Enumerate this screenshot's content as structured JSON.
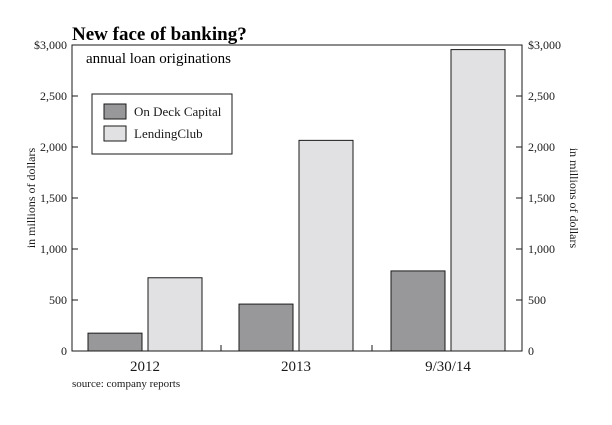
{
  "chart_data": {
    "type": "bar",
    "title": "New face of banking?",
    "subtitle": "annual loan originations",
    "categories": [
      "2012",
      "2013",
      "9/30/14"
    ],
    "series": [
      {
        "name": "On Deck Capital",
        "values": [
          175,
          460,
          785
        ],
        "color": "#98989b"
      },
      {
        "name": "LendingClub",
        "values": [
          718,
          2065,
          2955
        ],
        "color": "#e1e1e3"
      }
    ],
    "ylabel": "in millions of dollars",
    "ylabel_right": "in millions of dollars",
    "ylim": [
      0,
      3000
    ],
    "left_ticks": [
      "0",
      "500",
      "1,000",
      "1,500",
      "2,000",
      "2,500",
      "$3,000"
    ],
    "right_ticks": [
      "0",
      "500",
      "1,000",
      "1,500",
      "2,000",
      "2,500",
      "$3,000"
    ],
    "tick_values": [
      0,
      500,
      1000,
      1500,
      2000,
      2500,
      3000
    ],
    "grid": false,
    "legend_position": "top-left",
    "source": "source: company reports"
  }
}
